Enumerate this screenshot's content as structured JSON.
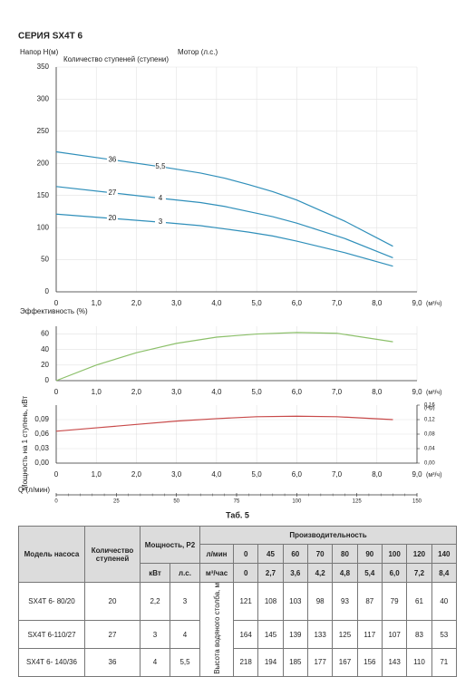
{
  "title": "СЕРИЯ SX4T 6",
  "chart_data": [
    {
      "type": "line",
      "ylabel": "Напор H(м)",
      "stage_title": "Количество ступеней (ступени)",
      "motor_title": "Мотор (л.с.)",
      "xlabel": "(м³/ч)",
      "x": [
        0,
        2.7,
        3.6,
        4.2,
        4.8,
        5.4,
        6.0,
        7.2,
        8.4
      ],
      "series": [
        {
          "name": "20",
          "motor": "3",
          "color": "#2f8fba",
          "values": [
            121,
            108,
            103,
            98,
            93,
            87,
            79,
            61,
            40
          ]
        },
        {
          "name": "27",
          "motor": "4",
          "color": "#2f8fba",
          "values": [
            164,
            145,
            139,
            133,
            125,
            117,
            107,
            83,
            53
          ]
        },
        {
          "name": "36",
          "motor": "5,5",
          "color": "#2f8fba",
          "values": [
            218,
            194,
            185,
            177,
            167,
            156,
            143,
            110,
            71
          ]
        }
      ],
      "xlim": [
        0,
        9
      ],
      "xticks": [
        0,
        {
          "value": 1,
          "label": "1,0"
        },
        {
          "value": 2,
          "label": "2,0"
        },
        {
          "value": 3,
          "label": "3,0"
        },
        {
          "value": 4,
          "label": "4,0"
        },
        {
          "value": 5,
          "label": "5,0"
        },
        {
          "value": 6,
          "label": "6,0"
        },
        {
          "value": 7,
          "label": "7,0"
        },
        {
          "value": 8,
          "label": "8,0"
        },
        {
          "value": 9,
          "label": "9,0"
        }
      ],
      "ylim": [
        0,
        350
      ],
      "yticks": [
        0,
        50,
        100,
        150,
        200,
        250,
        300,
        350
      ],
      "grid": true
    },
    {
      "type": "line",
      "ylabel": "Эффективность (%)",
      "xlabel": "(м³/ч)",
      "x": [
        0,
        1,
        2,
        3,
        4,
        5,
        6,
        7,
        8.4
      ],
      "series": [
        {
          "color": "#8cc06a",
          "values": [
            0,
            20,
            36,
            48,
            56,
            60,
            62,
            61,
            50
          ]
        }
      ],
      "xlim": [
        0,
        9
      ],
      "xticks": [
        0,
        {
          "value": 1,
          "label": "1,0"
        },
        {
          "value": 2,
          "label": "2,0"
        },
        {
          "value": 3,
          "label": "3,0"
        },
        {
          "value": 4,
          "label": "4,0"
        },
        {
          "value": 5,
          "label": "5,0"
        },
        {
          "value": 6,
          "label": "6,0"
        },
        {
          "value": 7,
          "label": "7,0"
        },
        {
          "value": 8,
          "label": "8,0"
        },
        {
          "value": 9,
          "label": "9,0"
        }
      ],
      "ylim": [
        0,
        70
      ],
      "yticks": [
        0,
        20,
        40,
        60
      ],
      "grid": true
    },
    {
      "type": "line",
      "ylabel": "Мощность на 1 ступень, кВт",
      "y2label": "(Hp)",
      "xlabel": "(м³/ч)",
      "x": [
        0,
        1,
        2,
        3,
        4,
        5,
        6,
        7,
        8.4
      ],
      "series": [
        {
          "color": "#c84a4a",
          "values": [
            0.066,
            0.073,
            0.08,
            0.087,
            0.092,
            0.096,
            0.097,
            0.096,
            0.09
          ]
        }
      ],
      "xlim": [
        0,
        9
      ],
      "xticks": [
        0,
        {
          "value": 1,
          "label": "1,0"
        },
        {
          "value": 2,
          "label": "2,0"
        },
        {
          "value": 3,
          "label": "3,0"
        },
        {
          "value": 4,
          "label": "4,0"
        },
        {
          "value": 5,
          "label": "5,0"
        },
        {
          "value": 6,
          "label": "6,0"
        },
        {
          "value": 7,
          "label": "7,0"
        },
        {
          "value": 8,
          "label": "8,0"
        },
        {
          "value": 9,
          "label": "9,0"
        }
      ],
      "ylim": [
        0,
        0.12
      ],
      "yticks": [
        {
          "value": 0,
          "label": "0,00"
        },
        {
          "value": 0.03,
          "label": "0,03"
        },
        {
          "value": 0.06,
          "label": "0,06"
        },
        {
          "value": 0.09,
          "label": "0,09"
        }
      ],
      "y2lim": [
        0,
        0.16
      ],
      "y2ticks": [
        {
          "value": 0,
          "label": "0,00"
        },
        {
          "value": 0.04,
          "label": "0,04"
        },
        {
          "value": 0.08,
          "label": "0,08"
        },
        {
          "value": 0.12,
          "label": "0,12"
        },
        {
          "value": 0.16,
          "label": "0,16"
        }
      ],
      "grid": true
    },
    {
      "type": "axis",
      "xlabel": "Q (л/мин)",
      "xlim": [
        0,
        150
      ],
      "xticks": [
        0,
        25,
        50,
        75,
        100,
        125,
        150
      ]
    }
  ],
  "table": {
    "caption": "Таб. 5",
    "headers": {
      "model": "Модель насоса",
      "stages": "Количество ступеней",
      "power": "Мощность, P2",
      "performance": "Производительность",
      "flow_lpm_label": "л/мин",
      "flow_lpm": [
        "0",
        "45",
        "60",
        "70",
        "80",
        "90",
        "100",
        "120",
        "140"
      ],
      "kw": "кВт",
      "hp": "л.с.",
      "flow_m3h_label": "м³/час",
      "flow_m3h": [
        "0",
        "2,7",
        "3,6",
        "4,2",
        "4,8",
        "5,4",
        "6,0",
        "7,2",
        "8,4"
      ]
    },
    "head_label": "Высота водяного столба, м",
    "rows": [
      [
        "SX4T 6- 80/20",
        "20",
        "2,2",
        "3",
        "121",
        "108",
        "103",
        "98",
        "93",
        "87",
        "79",
        "61",
        "40"
      ],
      [
        "SX4T 6-110/27",
        "27",
        "3",
        "4",
        "164",
        "145",
        "139",
        "133",
        "125",
        "117",
        "107",
        "83",
        "53"
      ],
      [
        "SX4T 6- 140/36",
        "36",
        "4",
        "5,5",
        "218",
        "194",
        "185",
        "177",
        "167",
        "156",
        "143",
        "110",
        "71"
      ]
    ]
  }
}
